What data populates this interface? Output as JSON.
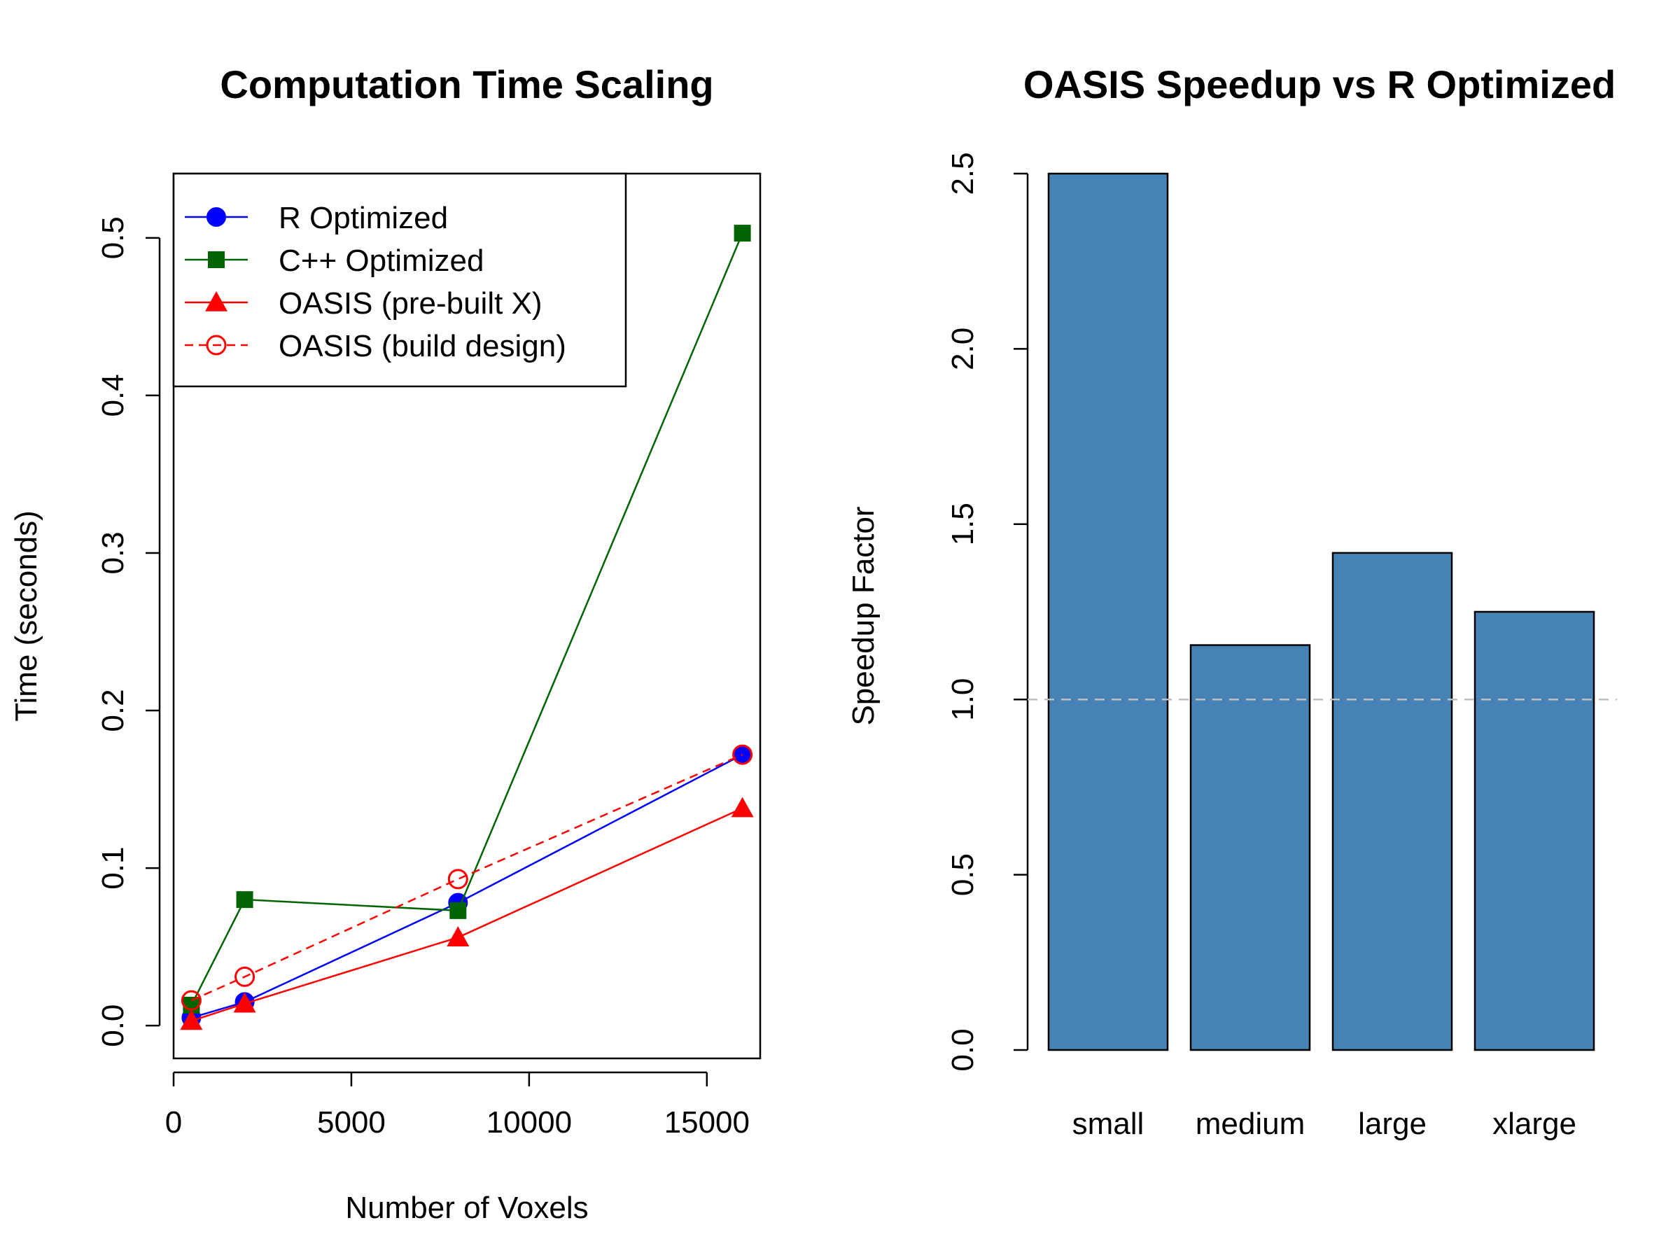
{
  "chart_data": [
    {
      "type": "line",
      "title": "Computation Time Scaling",
      "xlabel": "Number of Voxels",
      "ylabel": "Time (seconds)",
      "xlim": [
        0,
        16500
      ],
      "ylim": [
        0,
        0.52
      ],
      "x_ticks": [
        0,
        5000,
        10000,
        15000
      ],
      "x_tick_labels": [
        "0",
        "5000",
        "10000",
        "15000"
      ],
      "y_ticks": [
        0,
        0.1,
        0.2,
        0.3,
        0.4,
        0.5
      ],
      "y_tick_labels": [
        "0.0",
        "0.1",
        "0.2",
        "0.3",
        "0.4",
        "0.5"
      ],
      "grid": false,
      "legend_position": "top-left",
      "x": [
        500,
        2000,
        8000,
        16000
      ],
      "series": [
        {
          "name": "R Optimized",
          "values": [
            0.005,
            0.015,
            0.078,
            0.172
          ],
          "color": "#0000ff",
          "marker": "circle-filled",
          "line": "solid"
        },
        {
          "name": "C++ Optimized",
          "values": [
            0.013,
            0.08,
            0.073,
            0.503
          ],
          "color": "#006400",
          "marker": "square-filled",
          "line": "solid"
        },
        {
          "name": "OASIS (pre-built X)",
          "values": [
            0.003,
            0.014,
            0.056,
            0.138
          ],
          "color": "#ff0000",
          "marker": "triangle-filled",
          "line": "solid"
        },
        {
          "name": "OASIS (build design)",
          "values": [
            0.016,
            0.031,
            0.093,
            0.172
          ],
          "color": "#ff0000",
          "marker": "circle-open",
          "line": "dashed"
        }
      ]
    },
    {
      "type": "bar",
      "title": "OASIS Speedup vs R Optimized",
      "xlabel": "",
      "ylabel": "Speedup Factor",
      "ylim": [
        0,
        2.5
      ],
      "y_ticks": [
        0,
        0.5,
        1,
        1.5,
        2,
        2.5
      ],
      "y_tick_labels": [
        "0.0",
        "0.5",
        "1.0",
        "1.5",
        "2.0",
        "2.5"
      ],
      "categories": [
        "small",
        "medium",
        "large",
        "xlarge"
      ],
      "values": [
        2.5,
        1.155,
        1.418,
        1.25
      ],
      "bar_color": "#4682b4",
      "reference_line": {
        "y": 1.0,
        "color": "#bebebe",
        "style": "dashed"
      },
      "grid": false
    }
  ]
}
